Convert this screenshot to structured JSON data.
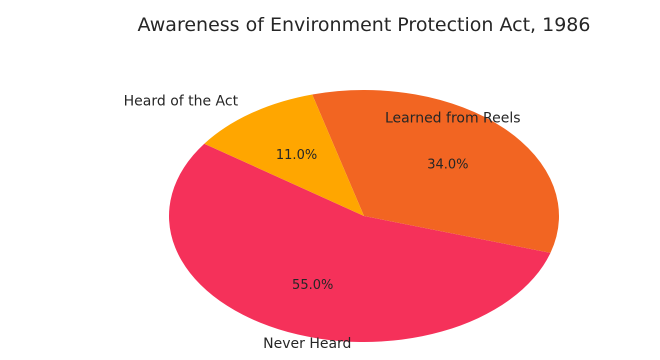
{
  "chart_data": {
    "type": "pie",
    "title": "Awareness of Environment Protection Act, 1986",
    "categories": [
      "Never Heard",
      "Learned from Reels",
      "Heard of the Act"
    ],
    "values": [
      55.0,
      34.0,
      11.0
    ],
    "value_labels": [
      "55.0%",
      "34.0%",
      "11.0%"
    ],
    "colors": [
      "#f5315a",
      "#f26522",
      "#ffa600"
    ],
    "start_angle_deg": 145,
    "direction": "counterclockwise",
    "legend": "none"
  }
}
